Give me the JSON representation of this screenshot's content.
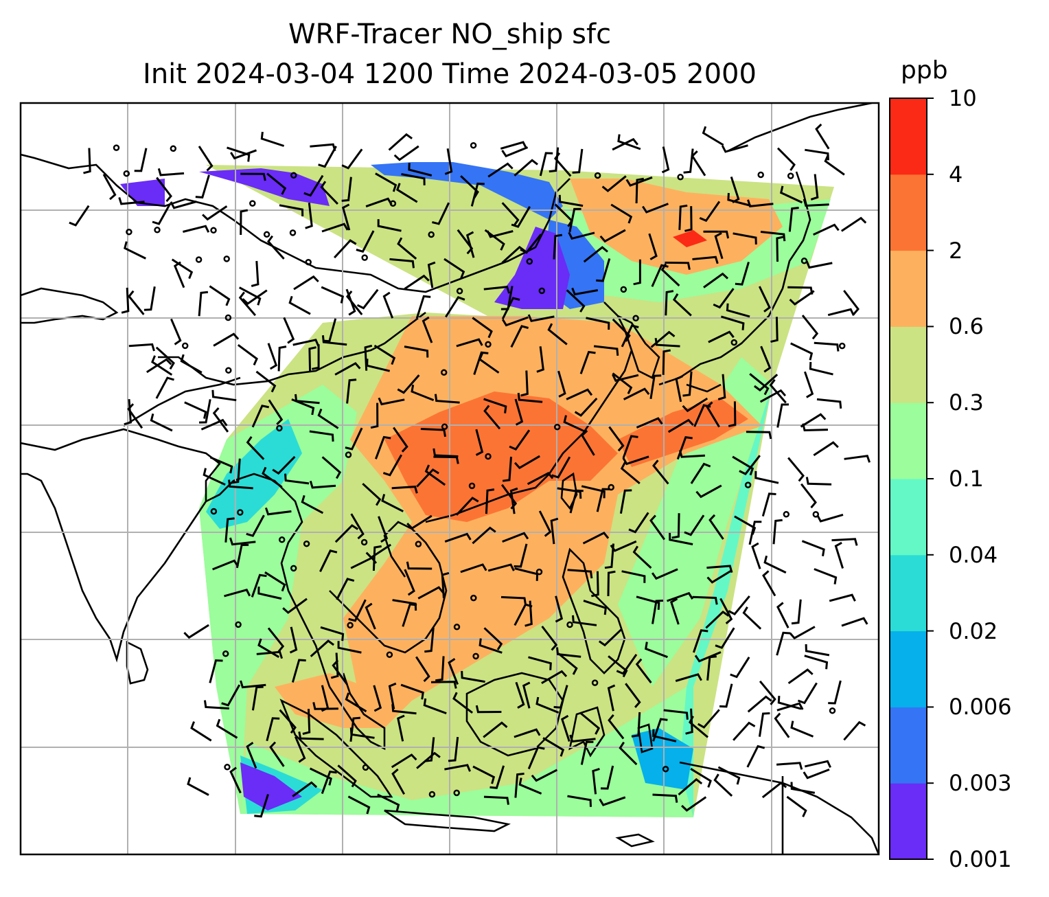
{
  "title": {
    "line1": "WRF-Tracer NO_ship sfc",
    "line2": "Init 2024-03-04 1200 Time 2024-03-05 2000"
  },
  "colorbar": {
    "unit": "ppb",
    "ticks": [
      "0.001",
      "0.003",
      "0.006",
      "0.02",
      "0.04",
      "0.1",
      "0.3",
      "0.6",
      "2",
      "4",
      "10"
    ],
    "colors": [
      "#6a2cf7",
      "#3574f4",
      "#05b0eb",
      "#2bdcd6",
      "#64f8c6",
      "#9bfd9b",
      "#cbe383",
      "#fdb15e",
      "#fc7434",
      "#fb2a16"
    ]
  },
  "map": {
    "frame_color": "#000000",
    "grid_color": "#b0b0b0",
    "coastline_color": "#000000",
    "barb_color": "#000000"
  }
}
